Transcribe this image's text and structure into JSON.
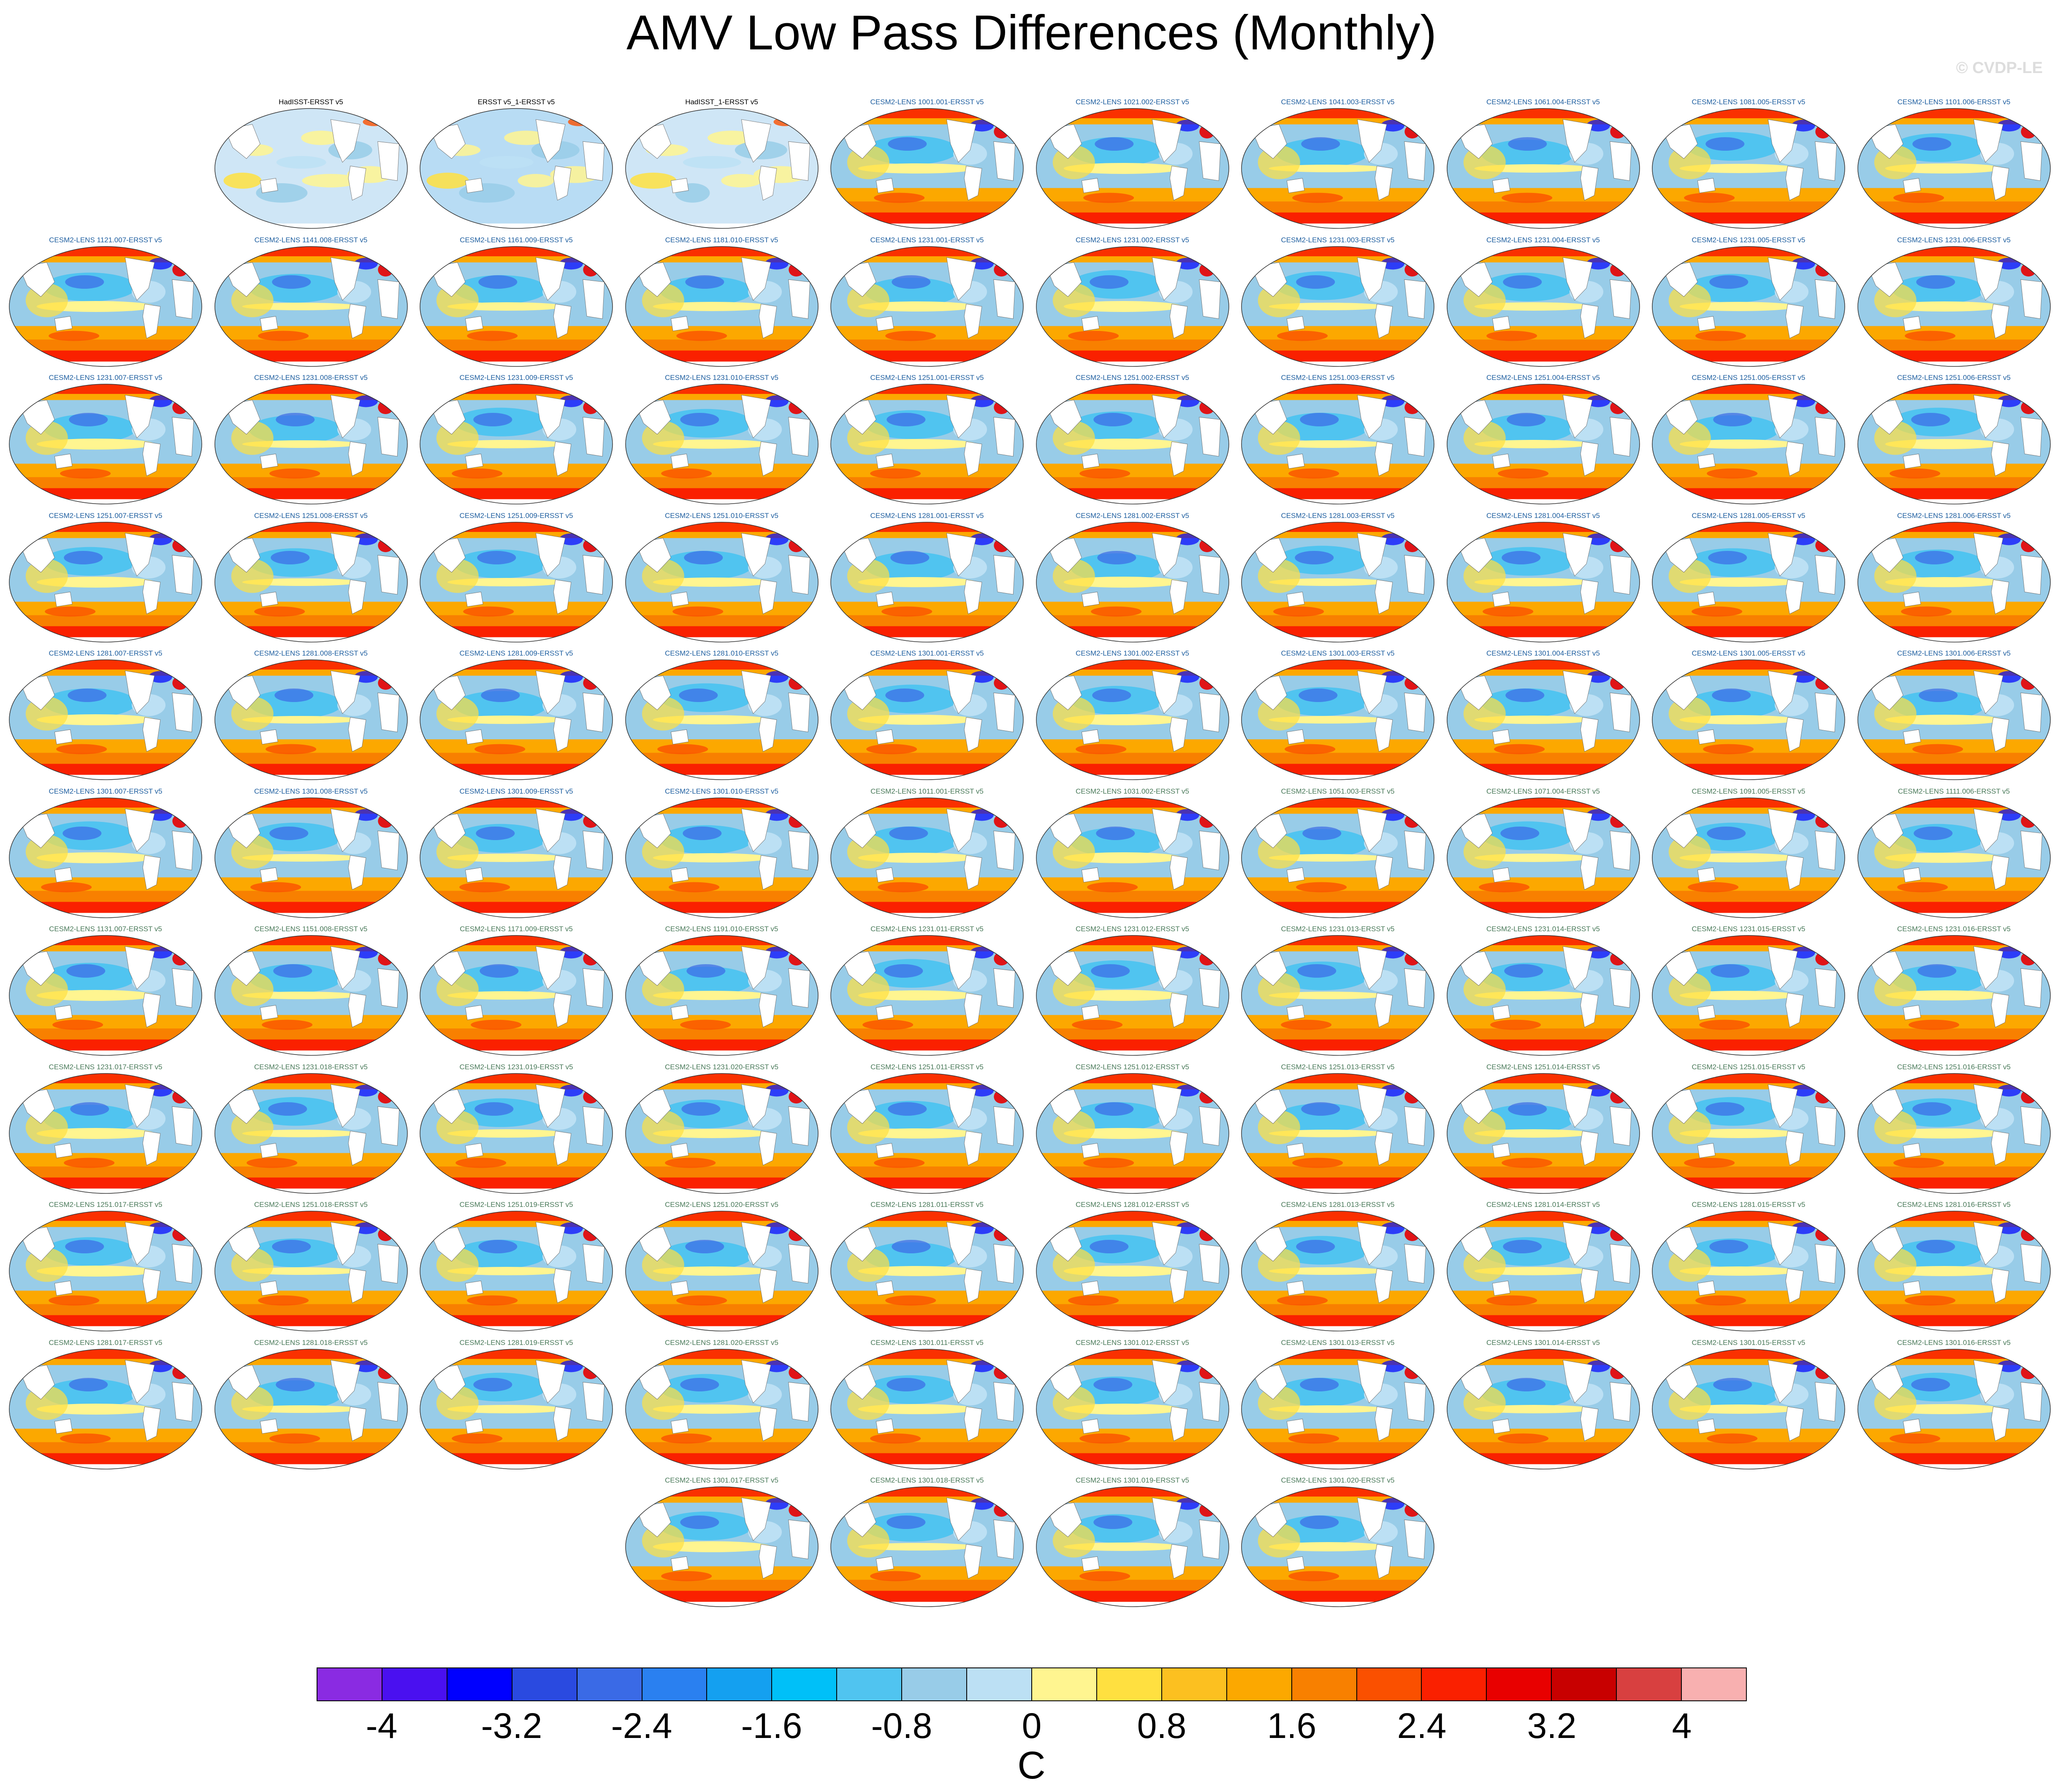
{
  "title": "AMV Low Pass Differences (Monthly)",
  "credit": "© CVDP-LE",
  "panels": [
    {
      "label": "HadISST-ERSST v5",
      "color": "#000000",
      "style": "obs"
    },
    {
      "label": "ERSST v5_1-ERSST v5",
      "color": "#000000",
      "style": "obs2"
    },
    {
      "label": "HadISST_1-ERSST v5",
      "color": "#000000",
      "style": "obs"
    },
    {
      "label": "CESM2-LENS 1001.001-ERSST v5",
      "color": "#1f5fa0"
    },
    {
      "label": "CESM2-LENS 1021.002-ERSST v5",
      "color": "#1f5fa0"
    },
    {
      "label": "CESM2-LENS 1041.003-ERSST v5",
      "color": "#1f5fa0"
    },
    {
      "label": "CESM2-LENS 1061.004-ERSST v5",
      "color": "#1f5fa0"
    },
    {
      "label": "CESM2-LENS 1081.005-ERSST v5",
      "color": "#1f5fa0"
    },
    {
      "label": "CESM2-LENS 1101.006-ERSST v5",
      "color": "#1f5fa0"
    },
    {
      "label": "CESM2-LENS 1121.007-ERSST v5",
      "color": "#1f5fa0"
    },
    {
      "label": "CESM2-LENS 1141.008-ERSST v5",
      "color": "#1f5fa0"
    },
    {
      "label": "CESM2-LENS 1161.009-ERSST v5",
      "color": "#1f5fa0"
    },
    {
      "label": "CESM2-LENS 1181.010-ERSST v5",
      "color": "#1f5fa0"
    },
    {
      "label": "CESM2-LENS 1231.001-ERSST v5",
      "color": "#1f5fa0"
    },
    {
      "label": "CESM2-LENS 1231.002-ERSST v5",
      "color": "#1f5fa0"
    },
    {
      "label": "CESM2-LENS 1231.003-ERSST v5",
      "color": "#1f5fa0"
    },
    {
      "label": "CESM2-LENS 1231.004-ERSST v5",
      "color": "#1f5fa0"
    },
    {
      "label": "CESM2-LENS 1231.005-ERSST v5",
      "color": "#1f5fa0"
    },
    {
      "label": "CESM2-LENS 1231.006-ERSST v5",
      "color": "#1f5fa0"
    },
    {
      "label": "CESM2-LENS 1231.007-ERSST v5",
      "color": "#1f5fa0"
    },
    {
      "label": "CESM2-LENS 1231.008-ERSST v5",
      "color": "#1f5fa0"
    },
    {
      "label": "CESM2-LENS 1231.009-ERSST v5",
      "color": "#1f5fa0"
    },
    {
      "label": "CESM2-LENS 1231.010-ERSST v5",
      "color": "#1f5fa0"
    },
    {
      "label": "CESM2-LENS 1251.001-ERSST v5",
      "color": "#1f5fa0"
    },
    {
      "label": "CESM2-LENS 1251.002-ERSST v5",
      "color": "#1f5fa0"
    },
    {
      "label": "CESM2-LENS 1251.003-ERSST v5",
      "color": "#1f5fa0"
    },
    {
      "label": "CESM2-LENS 1251.004-ERSST v5",
      "color": "#1f5fa0"
    },
    {
      "label": "CESM2-LENS 1251.005-ERSST v5",
      "color": "#1f5fa0"
    },
    {
      "label": "CESM2-LENS 1251.006-ERSST v5",
      "color": "#1f5fa0"
    },
    {
      "label": "CESM2-LENS 1251.007-ERSST v5",
      "color": "#1f5fa0"
    },
    {
      "label": "CESM2-LENS 1251.008-ERSST v5",
      "color": "#1f5fa0"
    },
    {
      "label": "CESM2-LENS 1251.009-ERSST v5",
      "color": "#1f5fa0"
    },
    {
      "label": "CESM2-LENS 1251.010-ERSST v5",
      "color": "#1f5fa0"
    },
    {
      "label": "CESM2-LENS 1281.001-ERSST v5",
      "color": "#1f5fa0"
    },
    {
      "label": "CESM2-LENS 1281.002-ERSST v5",
      "color": "#1f5fa0"
    },
    {
      "label": "CESM2-LENS 1281.003-ERSST v5",
      "color": "#1f5fa0"
    },
    {
      "label": "CESM2-LENS 1281.004-ERSST v5",
      "color": "#1f5fa0"
    },
    {
      "label": "CESM2-LENS 1281.005-ERSST v5",
      "color": "#1f5fa0"
    },
    {
      "label": "CESM2-LENS 1281.006-ERSST v5",
      "color": "#1f5fa0"
    },
    {
      "label": "CESM2-LENS 1281.007-ERSST v5",
      "color": "#1f5fa0"
    },
    {
      "label": "CESM2-LENS 1281.008-ERSST v5",
      "color": "#1f5fa0"
    },
    {
      "label": "CESM2-LENS 1281.009-ERSST v5",
      "color": "#1f5fa0"
    },
    {
      "label": "CESM2-LENS 1281.010-ERSST v5",
      "color": "#1f5fa0"
    },
    {
      "label": "CESM2-LENS 1301.001-ERSST v5",
      "color": "#1f5fa0"
    },
    {
      "label": "CESM2-LENS 1301.002-ERSST v5",
      "color": "#1f5fa0"
    },
    {
      "label": "CESM2-LENS 1301.003-ERSST v5",
      "color": "#1f5fa0"
    },
    {
      "label": "CESM2-LENS 1301.004-ERSST v5",
      "color": "#1f5fa0"
    },
    {
      "label": "CESM2-LENS 1301.005-ERSST v5",
      "color": "#1f5fa0"
    },
    {
      "label": "CESM2-LENS 1301.006-ERSST v5",
      "color": "#1f5fa0"
    },
    {
      "label": "CESM2-LENS 1301.007-ERSST v5",
      "color": "#1f5fa0"
    },
    {
      "label": "CESM2-LENS 1301.008-ERSST v5",
      "color": "#1f5fa0"
    },
    {
      "label": "CESM2-LENS 1301.009-ERSST v5",
      "color": "#1f5fa0"
    },
    {
      "label": "CESM2-LENS 1301.010-ERSST v5",
      "color": "#1f5fa0"
    },
    {
      "label": "CESM2-LENS 1011.001-ERSST v5",
      "color": "#4a7a5a"
    },
    {
      "label": "CESM2-LENS 1031.002-ERSST v5",
      "color": "#4a7a5a"
    },
    {
      "label": "CESM2-LENS 1051.003-ERSST v5",
      "color": "#4a7a5a"
    },
    {
      "label": "CESM2-LENS 1071.004-ERSST v5",
      "color": "#4a7a5a"
    },
    {
      "label": "CESM2-LENS 1091.005-ERSST v5",
      "color": "#4a7a5a"
    },
    {
      "label": "CESM2-LENS 1111.006-ERSST v5",
      "color": "#4a7a5a"
    },
    {
      "label": "CESM2-LENS 1131.007-ERSST v5",
      "color": "#4a7a5a"
    },
    {
      "label": "CESM2-LENS 1151.008-ERSST v5",
      "color": "#4a7a5a"
    },
    {
      "label": "CESM2-LENS 1171.009-ERSST v5",
      "color": "#4a7a5a"
    },
    {
      "label": "CESM2-LENS 1191.010-ERSST v5",
      "color": "#4a7a5a"
    },
    {
      "label": "CESM2-LENS 1231.011-ERSST v5",
      "color": "#4a7a5a"
    },
    {
      "label": "CESM2-LENS 1231.012-ERSST v5",
      "color": "#4a7a5a"
    },
    {
      "label": "CESM2-LENS 1231.013-ERSST v5",
      "color": "#4a7a5a"
    },
    {
      "label": "CESM2-LENS 1231.014-ERSST v5",
      "color": "#4a7a5a"
    },
    {
      "label": "CESM2-LENS 1231.015-ERSST v5",
      "color": "#4a7a5a"
    },
    {
      "label": "CESM2-LENS 1231.016-ERSST v5",
      "color": "#4a7a5a"
    },
    {
      "label": "CESM2-LENS 1231.017-ERSST v5",
      "color": "#4a7a5a"
    },
    {
      "label": "CESM2-LENS 1231.018-ERSST v5",
      "color": "#4a7a5a"
    },
    {
      "label": "CESM2-LENS 1231.019-ERSST v5",
      "color": "#4a7a5a"
    },
    {
      "label": "CESM2-LENS 1231.020-ERSST v5",
      "color": "#4a7a5a"
    },
    {
      "label": "CESM2-LENS 1251.011-ERSST v5",
      "color": "#4a7a5a"
    },
    {
      "label": "CESM2-LENS 1251.012-ERSST v5",
      "color": "#4a7a5a"
    },
    {
      "label": "CESM2-LENS 1251.013-ERSST v5",
      "color": "#4a7a5a"
    },
    {
      "label": "CESM2-LENS 1251.014-ERSST v5",
      "color": "#4a7a5a"
    },
    {
      "label": "CESM2-LENS 1251.015-ERSST v5",
      "color": "#4a7a5a"
    },
    {
      "label": "CESM2-LENS 1251.016-ERSST v5",
      "color": "#4a7a5a"
    },
    {
      "label": "CESM2-LENS 1251.017-ERSST v5",
      "color": "#4a7a5a"
    },
    {
      "label": "CESM2-LENS 1251.018-ERSST v5",
      "color": "#4a7a5a"
    },
    {
      "label": "CESM2-LENS 1251.019-ERSST v5",
      "color": "#4a7a5a"
    },
    {
      "label": "CESM2-LENS 1251.020-ERSST v5",
      "color": "#4a7a5a"
    },
    {
      "label": "CESM2-LENS 1281.011-ERSST v5",
      "color": "#4a7a5a"
    },
    {
      "label": "CESM2-LENS 1281.012-ERSST v5",
      "color": "#4a7a5a"
    },
    {
      "label": "CESM2-LENS 1281.013-ERSST v5",
      "color": "#4a7a5a"
    },
    {
      "label": "CESM2-LENS 1281.014-ERSST v5",
      "color": "#4a7a5a"
    },
    {
      "label": "CESM2-LENS 1281.015-ERSST v5",
      "color": "#4a7a5a"
    },
    {
      "label": "CESM2-LENS 1281.016-ERSST v5",
      "color": "#4a7a5a"
    },
    {
      "label": "CESM2-LENS 1281.017-ERSST v5",
      "color": "#4a7a5a"
    },
    {
      "label": "CESM2-LENS 1281.018-ERSST v5",
      "color": "#4a7a5a"
    },
    {
      "label": "CESM2-LENS 1281.019-ERSST v5",
      "color": "#4a7a5a"
    },
    {
      "label": "CESM2-LENS 1281.020-ERSST v5",
      "color": "#4a7a5a"
    },
    {
      "label": "CESM2-LENS 1301.011-ERSST v5",
      "color": "#4a7a5a"
    },
    {
      "label": "CESM2-LENS 1301.012-ERSST v5",
      "color": "#4a7a5a"
    },
    {
      "label": "CESM2-LENS 1301.013-ERSST v5",
      "color": "#4a7a5a"
    },
    {
      "label": "CESM2-LENS 1301.014-ERSST v5",
      "color": "#4a7a5a"
    },
    {
      "label": "CESM2-LENS 1301.015-ERSST v5",
      "color": "#4a7a5a"
    },
    {
      "label": "CESM2-LENS 1301.016-ERSST v5",
      "color": "#4a7a5a"
    },
    {
      "label": "CESM2-LENS 1301.017-ERSST v5",
      "color": "#4a7a5a"
    },
    {
      "label": "CESM2-LENS 1301.018-ERSST v5",
      "color": "#4a7a5a"
    },
    {
      "label": "CESM2-LENS 1301.019-ERSST v5",
      "color": "#4a7a5a"
    },
    {
      "label": "CESM2-LENS 1301.020-ERSST v5",
      "color": "#4a7a5a"
    }
  ],
  "colorbar": {
    "unit": "C",
    "colors": [
      "#8a2be2",
      "#4a10f0",
      "#0000ff",
      "#2a4ae0",
      "#3a6ae6",
      "#2a80f0",
      "#14a0f0",
      "#00c0f8",
      "#50c4f0",
      "#98cce8",
      "#bce0f4",
      "#fff590",
      "#ffe040",
      "#fcc020",
      "#fca800",
      "#f88000",
      "#fa5000",
      "#fa2000",
      "#e80000",
      "#c80000",
      "#d84040",
      "#f8b0b0"
    ],
    "ticks": [
      "-4",
      "-3.2",
      "-2.4",
      "-1.6",
      "-0.8",
      "0",
      "0.8",
      "1.6",
      "2.4",
      "3.2",
      "4"
    ]
  }
}
